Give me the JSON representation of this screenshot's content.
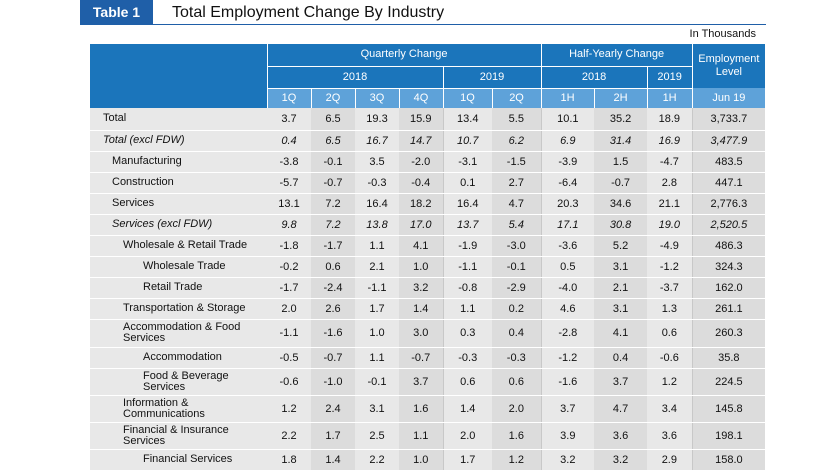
{
  "header": {
    "tag": "Table 1",
    "title": "Total Employment Change By Industry",
    "units": "In Thousands"
  },
  "columns": {
    "quarterly_label": "Quarterly Change",
    "halfyearly_label": "Half-Yearly Change",
    "employment_label_line1": "Employment",
    "employment_label_line2": "Level",
    "year_2018": "2018",
    "year_2019": "2019",
    "hy_2018": "2018",
    "hy_2019": "2019",
    "sub": [
      "1Q",
      "2Q",
      "3Q",
      "4Q",
      "1Q",
      "2Q",
      "1H",
      "2H",
      "1H",
      "Jun 19"
    ]
  },
  "rows": [
    {
      "label": "Total",
      "values": [
        "3.7",
        "6.5",
        "19.3",
        "15.9",
        "13.4",
        "5.5",
        "10.1",
        "35.2",
        "18.9",
        "3,733.7"
      ]
    },
    {
      "label": "Total (excl FDW)",
      "values": [
        "0.4",
        "6.5",
        "16.7",
        "14.7",
        "10.7",
        "6.2",
        "6.9",
        "31.4",
        "16.9",
        "3,477.9"
      ]
    },
    {
      "label": "Manufacturing",
      "values": [
        "-3.8",
        "-0.1",
        "3.5",
        "-2.0",
        "-3.1",
        "-1.5",
        "-3.9",
        "1.5",
        "-4.7",
        "483.5"
      ]
    },
    {
      "label": "Construction",
      "values": [
        "-5.7",
        "-0.7",
        "-0.3",
        "-0.4",
        "0.1",
        "2.7",
        "-6.4",
        "-0.7",
        "2.8",
        "447.1"
      ]
    },
    {
      "label": "Services",
      "values": [
        "13.1",
        "7.2",
        "16.4",
        "18.2",
        "16.4",
        "4.7",
        "20.3",
        "34.6",
        "21.1",
        "2,776.3"
      ]
    },
    {
      "label": "Services (excl FDW)",
      "values": [
        "9.8",
        "7.2",
        "13.8",
        "17.0",
        "13.7",
        "5.4",
        "17.1",
        "30.8",
        "19.0",
        "2,520.5"
      ]
    },
    {
      "label": "Wholesale & Retail Trade",
      "values": [
        "-1.8",
        "-1.7",
        "1.1",
        "4.1",
        "-1.9",
        "-3.0",
        "-3.6",
        "5.2",
        "-4.9",
        "486.3"
      ]
    },
    {
      "label": "Wholesale Trade",
      "values": [
        "-0.2",
        "0.6",
        "2.1",
        "1.0",
        "-1.1",
        "-0.1",
        "0.5",
        "3.1",
        "-1.2",
        "324.3"
      ]
    },
    {
      "label": "Retail Trade",
      "values": [
        "-1.7",
        "-2.4",
        "-1.1",
        "3.2",
        "-0.8",
        "-2.9",
        "-4.0",
        "2.1",
        "-3.7",
        "162.0"
      ]
    },
    {
      "label": "Transportation & Storage",
      "values": [
        "2.0",
        "2.6",
        "1.7",
        "1.4",
        "1.1",
        "0.2",
        "4.6",
        "3.1",
        "1.3",
        "261.1"
      ]
    },
    {
      "label": "Accommodation & Food Services",
      "values": [
        "-1.1",
        "-1.6",
        "1.0",
        "3.0",
        "0.3",
        "0.4",
        "-2.8",
        "4.1",
        "0.6",
        "260.3"
      ]
    },
    {
      "label": "Accommodation",
      "values": [
        "-0.5",
        "-0.7",
        "1.1",
        "-0.7",
        "-0.3",
        "-0.3",
        "-1.2",
        "0.4",
        "-0.6",
        "35.8"
      ]
    },
    {
      "label": "Food & Beverage Services",
      "values": [
        "-0.6",
        "-1.0",
        "-0.1",
        "3.7",
        "0.6",
        "0.6",
        "-1.6",
        "3.7",
        "1.2",
        "224.5"
      ]
    },
    {
      "label": "Information & Communications",
      "values": [
        "1.2",
        "2.4",
        "3.1",
        "1.6",
        "1.4",
        "2.0",
        "3.7",
        "4.7",
        "3.4",
        "145.8"
      ]
    },
    {
      "label": "Financial & Insurance Services",
      "values": [
        "2.2",
        "1.7",
        "2.5",
        "1.1",
        "2.0",
        "1.6",
        "3.9",
        "3.6",
        "3.6",
        "198.1"
      ]
    },
    {
      "label": "Financial Services",
      "values": [
        "1.8",
        "1.4",
        "2.2",
        "1.0",
        "1.7",
        "1.2",
        "3.2",
        "3.2",
        "2.9",
        "158.0"
      ]
    }
  ]
}
